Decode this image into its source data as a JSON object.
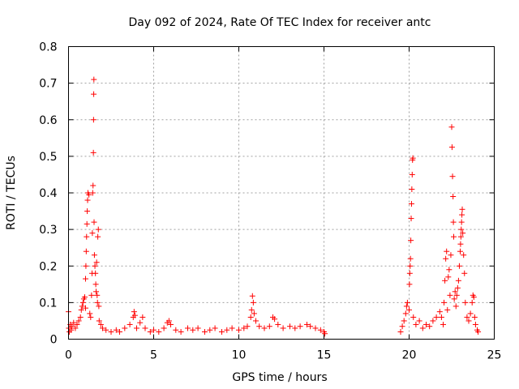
{
  "chart_data": {
    "type": "scatter",
    "title": "Day 092 of 2024, Rate Of TEC Index for receiver antc",
    "xlabel": "GPS time / hours",
    "ylabel": "ROTI / TECUs",
    "xlim": [
      0,
      25
    ],
    "ylim": [
      0,
      0.8
    ],
    "xticks": [
      0,
      5,
      10,
      15,
      20,
      25
    ],
    "yticks": [
      0,
      0.1,
      0.2,
      0.3,
      0.4,
      0.5,
      0.6,
      0.7,
      0.8
    ],
    "ytick_labels": [
      "0",
      "0.1",
      "0.2",
      "0.3",
      "0.4",
      "0.5",
      "0.6",
      "0.7",
      "0.8"
    ],
    "grid": true,
    "marker": "+",
    "color": "#ff0000",
    "series": [
      {
        "points": [
          [
            0.0,
            0.075
          ],
          [
            0.02,
            0.03
          ],
          [
            0.05,
            0.02
          ],
          [
            0.1,
            0.04
          ],
          [
            0.15,
            0.025
          ],
          [
            0.2,
            0.035
          ],
          [
            0.3,
            0.045
          ],
          [
            0.4,
            0.03
          ],
          [
            0.5,
            0.04
          ],
          [
            0.6,
            0.05
          ],
          [
            0.7,
            0.06
          ],
          [
            0.75,
            0.08
          ],
          [
            0.8,
            0.09
          ],
          [
            0.85,
            0.1
          ],
          [
            0.9,
            0.11
          ],
          [
            0.95,
            0.115
          ],
          [
            1.0,
            0.085
          ],
          [
            1.0,
            0.165
          ],
          [
            1.02,
            0.2
          ],
          [
            1.04,
            0.24
          ],
          [
            1.06,
            0.28
          ],
          [
            1.08,
            0.315
          ],
          [
            1.1,
            0.35
          ],
          [
            1.12,
            0.38
          ],
          [
            1.14,
            0.4
          ],
          [
            1.2,
            0.395
          ],
          [
            1.25,
            0.07
          ],
          [
            1.3,
            0.06
          ],
          [
            1.35,
            0.12
          ],
          [
            1.38,
            0.18
          ],
          [
            1.4,
            0.29
          ],
          [
            1.42,
            0.4
          ],
          [
            1.44,
            0.42
          ],
          [
            1.46,
            0.51
          ],
          [
            1.47,
            0.6
          ],
          [
            1.48,
            0.67
          ],
          [
            1.49,
            0.71
          ],
          [
            1.5,
            0.32
          ],
          [
            1.52,
            0.23
          ],
          [
            1.55,
            0.2
          ],
          [
            1.58,
            0.18
          ],
          [
            1.6,
            0.15
          ],
          [
            1.62,
            0.13
          ],
          [
            1.65,
            0.21
          ],
          [
            1.68,
            0.12
          ],
          [
            1.7,
            0.1
          ],
          [
            1.72,
            0.28
          ],
          [
            1.75,
            0.3
          ],
          [
            1.78,
            0.09
          ],
          [
            1.8,
            0.05
          ],
          [
            1.9,
            0.04
          ],
          [
            2.0,
            0.03
          ],
          [
            2.2,
            0.025
          ],
          [
            2.5,
            0.02
          ],
          [
            2.8,
            0.025
          ],
          [
            3.0,
            0.02
          ],
          [
            3.3,
            0.03
          ],
          [
            3.6,
            0.04
          ],
          [
            3.8,
            0.06
          ],
          [
            3.85,
            0.075
          ],
          [
            3.9,
            0.065
          ],
          [
            4.0,
            0.03
          ],
          [
            4.2,
            0.045
          ],
          [
            4.35,
            0.06
          ],
          [
            4.5,
            0.03
          ],
          [
            4.8,
            0.02
          ],
          [
            5.0,
            0.025
          ],
          [
            5.3,
            0.02
          ],
          [
            5.6,
            0.03
          ],
          [
            5.8,
            0.045
          ],
          [
            5.9,
            0.05
          ],
          [
            6.0,
            0.04
          ],
          [
            6.3,
            0.025
          ],
          [
            6.6,
            0.02
          ],
          [
            7.0,
            0.03
          ],
          [
            7.3,
            0.025
          ],
          [
            7.6,
            0.03
          ],
          [
            8.0,
            0.02
          ],
          [
            8.3,
            0.025
          ],
          [
            8.6,
            0.03
          ],
          [
            9.0,
            0.02
          ],
          [
            9.3,
            0.025
          ],
          [
            9.6,
            0.03
          ],
          [
            10.0,
            0.025
          ],
          [
            10.3,
            0.03
          ],
          [
            10.5,
            0.035
          ],
          [
            10.7,
            0.06
          ],
          [
            10.75,
            0.08
          ],
          [
            10.8,
            0.118
          ],
          [
            10.85,
            0.1
          ],
          [
            10.9,
            0.07
          ],
          [
            11.0,
            0.05
          ],
          [
            11.2,
            0.035
          ],
          [
            11.5,
            0.03
          ],
          [
            11.8,
            0.035
          ],
          [
            12.0,
            0.06
          ],
          [
            12.1,
            0.055
          ],
          [
            12.3,
            0.04
          ],
          [
            12.6,
            0.03
          ],
          [
            13.0,
            0.035
          ],
          [
            13.3,
            0.03
          ],
          [
            13.6,
            0.035
          ],
          [
            14.0,
            0.04
          ],
          [
            14.2,
            0.035
          ],
          [
            14.5,
            0.03
          ],
          [
            14.8,
            0.025
          ],
          [
            15.0,
            0.02
          ],
          [
            15.05,
            0.015
          ],
          [
            19.5,
            0.02
          ],
          [
            19.6,
            0.035
          ],
          [
            19.7,
            0.05
          ],
          [
            19.8,
            0.07
          ],
          [
            19.85,
            0.09
          ],
          [
            19.9,
            0.1
          ],
          [
            20.0,
            0.08
          ],
          [
            20.02,
            0.15
          ],
          [
            20.04,
            0.18
          ],
          [
            20.06,
            0.2
          ],
          [
            20.08,
            0.22
          ],
          [
            20.1,
            0.27
          ],
          [
            20.12,
            0.33
          ],
          [
            20.14,
            0.37
          ],
          [
            20.16,
            0.41
          ],
          [
            20.18,
            0.45
          ],
          [
            20.2,
            0.49
          ],
          [
            20.22,
            0.495
          ],
          [
            20.25,
            0.06
          ],
          [
            20.4,
            0.04
          ],
          [
            20.6,
            0.05
          ],
          [
            20.8,
            0.03
          ],
          [
            21.0,
            0.04
          ],
          [
            21.2,
            0.035
          ],
          [
            21.4,
            0.05
          ],
          [
            21.6,
            0.06
          ],
          [
            21.8,
            0.075
          ],
          [
            21.9,
            0.06
          ],
          [
            22.0,
            0.04
          ],
          [
            22.05,
            0.1
          ],
          [
            22.1,
            0.16
          ],
          [
            22.15,
            0.22
          ],
          [
            22.2,
            0.24
          ],
          [
            22.25,
            0.08
          ],
          [
            22.3,
            0.17
          ],
          [
            22.35,
            0.19
          ],
          [
            22.4,
            0.12
          ],
          [
            22.45,
            0.23
          ],
          [
            22.5,
            0.58
          ],
          [
            22.52,
            0.525
          ],
          [
            22.55,
            0.445
          ],
          [
            22.58,
            0.39
          ],
          [
            22.6,
            0.32
          ],
          [
            22.62,
            0.28
          ],
          [
            22.65,
            0.11
          ],
          [
            22.7,
            0.13
          ],
          [
            22.75,
            0.09
          ],
          [
            22.8,
            0.12
          ],
          [
            22.85,
            0.14
          ],
          [
            22.9,
            0.16
          ],
          [
            22.95,
            0.2
          ],
          [
            23.0,
            0.24
          ],
          [
            23.02,
            0.26
          ],
          [
            23.04,
            0.28
          ],
          [
            23.06,
            0.3
          ],
          [
            23.08,
            0.32
          ],
          [
            23.1,
            0.34
          ],
          [
            23.12,
            0.355
          ],
          [
            23.15,
            0.29
          ],
          [
            23.2,
            0.23
          ],
          [
            23.25,
            0.18
          ],
          [
            23.3,
            0.1
          ],
          [
            23.4,
            0.06
          ],
          [
            23.5,
            0.05
          ],
          [
            23.6,
            0.07
          ],
          [
            23.7,
            0.1
          ],
          [
            23.75,
            0.12
          ],
          [
            23.8,
            0.115
          ],
          [
            23.85,
            0.06
          ],
          [
            23.9,
            0.04
          ],
          [
            24.0,
            0.025
          ],
          [
            24.05,
            0.02
          ]
        ]
      }
    ]
  }
}
